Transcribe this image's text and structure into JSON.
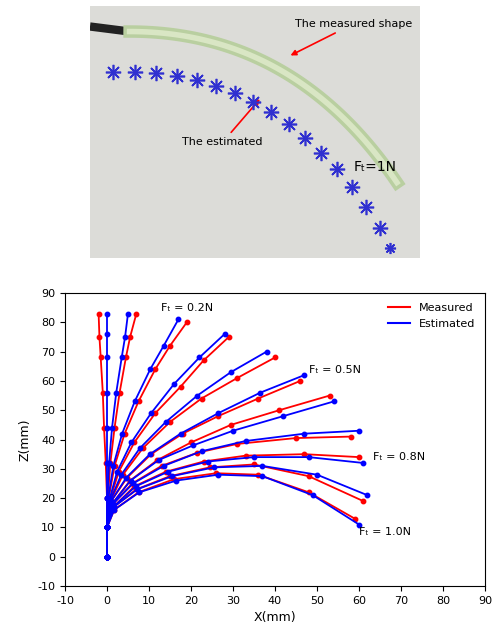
{
  "photo": {
    "measured_label": "The measured shape",
    "estimated_label": "The estimated",
    "force_label": "Fₜ=1N"
  },
  "chart_data": {
    "type": "line",
    "xlabel": "X(mm)",
    "ylabel": "Z(mm)",
    "xlim": [
      -10,
      90
    ],
    "ylim": [
      -10,
      90
    ],
    "xticks": [
      -10,
      0,
      10,
      20,
      30,
      40,
      50,
      60,
      70,
      80,
      90
    ],
    "yticks": [
      -10,
      0,
      10,
      20,
      30,
      40,
      50,
      60,
      70,
      80,
      90
    ],
    "grid": false,
    "legend": "upper right",
    "series": [
      {
        "name": "Measured",
        "color": "#ff0000",
        "marker": "o",
        "curves": [
          {
            "x": [
              0,
              0,
              0,
              -0.3,
              -0.7,
              -1,
              -1.5,
              -1.8,
              -2
            ],
            "y": [
              0,
              10,
              20,
              32,
              44,
              56,
              68,
              75,
              83
            ]
          },
          {
            "x": [
              0,
              0,
              0.2,
              0.8,
              1.8,
              3,
              4.5,
              5.5,
              7
            ],
            "y": [
              0,
              10,
              20,
              32,
              44,
              56,
              68,
              75,
              83
            ]
          },
          {
            "x": [
              0,
              0,
              0.4,
              1.8,
              4.2,
              7.5,
              11.5,
              15,
              19
            ],
            "y": [
              0,
              10,
              20,
              31,
              42,
              53,
              64,
              72,
              80
            ],
            "label": "Fₜ = 0.2N"
          },
          {
            "x": [
              0,
              0,
              0.6,
              2.8,
              6.5,
              11.5,
              17.5,
              23,
              29
            ],
            "y": [
              0,
              10,
              19,
              29,
              39,
              49,
              58,
              67,
              75
            ]
          },
          {
            "x": [
              0,
              0,
              0.8,
              3.8,
              8.5,
              15,
              22.5,
              31,
              40
            ],
            "y": [
              0,
              10,
              19,
              28,
              37,
              46,
              54,
              61,
              68
            ]
          },
          {
            "x": [
              0,
              0,
              1,
              4.8,
              10.5,
              18,
              26.5,
              36,
              46
            ],
            "y": [
              0,
              10,
              19,
              27,
              35,
              42,
              48,
              54,
              60
            ],
            "label": "Fₜ = 0.5N"
          },
          {
            "x": [
              0,
              0,
              1.2,
              5.5,
              12,
              20,
              29.5,
              41,
              53
            ],
            "y": [
              0,
              10,
              18,
              26,
              33,
              39,
              45,
              50,
              55
            ]
          },
          {
            "x": [
              0,
              0,
              1.4,
              6,
              13,
              21.5,
              31,
              45,
              58
            ],
            "y": [
              0,
              10,
              18,
              25,
              31,
              35.5,
              38.5,
              40.5,
              41
            ]
          },
          {
            "x": [
              0,
              0,
              1.5,
              6.5,
              14,
              23,
              33,
              47,
              60
            ],
            "y": [
              0,
              10,
              17,
              24,
              29,
              32.5,
              34.5,
              35,
              34
            ],
            "label": "Fₜ = 0.8N"
          },
          {
            "x": [
              0,
              0,
              1.6,
              7,
              15,
              24.5,
              35,
              48,
              61
            ],
            "y": [
              0,
              10,
              17,
              23,
              27.5,
              30.5,
              31.5,
              27.5,
              19
            ]
          },
          {
            "x": [
              0,
              0,
              1.7,
              7.5,
              16,
              26,
              36,
              48,
              59
            ],
            "y": [
              0,
              10,
              16,
              22,
              26.5,
              28.5,
              28,
              22,
              13
            ],
            "label": "Fₜ = 1.0N"
          }
        ]
      },
      {
        "name": "Estimated",
        "color": "#0000ff",
        "marker": "o",
        "curves": [
          {
            "x": [
              0,
              0,
              0,
              0,
              0,
              0,
              0,
              0,
              0
            ],
            "y": [
              0,
              10,
              20,
              32,
              44,
              56,
              68,
              76,
              83
            ]
          },
          {
            "x": [
              0,
              0,
              0.1,
              0.5,
              1.2,
              2.2,
              3.5,
              4.3,
              5
            ],
            "y": [
              0,
              10,
              20,
              32,
              44,
              56,
              68,
              75,
              83
            ]
          },
          {
            "x": [
              0,
              0,
              0.3,
              1.5,
              3.6,
              6.6,
              10.3,
              13.5,
              17
            ],
            "y": [
              0,
              10,
              20,
              31,
              42,
              53,
              64,
              72,
              81
            ]
          },
          {
            "x": [
              0,
              0,
              0.5,
              2.4,
              5.8,
              10.5,
              16,
              22,
              28
            ],
            "y": [
              0,
              10,
              19,
              29,
              39,
              49,
              59,
              68,
              76
            ]
          },
          {
            "x": [
              0,
              0,
              0.7,
              3.4,
              7.8,
              14,
              21.5,
              29.5,
              38
            ],
            "y": [
              0,
              10,
              19,
              28,
              37,
              46,
              55,
              63,
              70
            ]
          },
          {
            "x": [
              0,
              0,
              1,
              4.6,
              10.2,
              17.5,
              26.5,
              36.5,
              47
            ],
            "y": [
              0,
              10,
              19,
              27,
              35,
              42,
              49,
              56,
              62
            ]
          },
          {
            "x": [
              0,
              0,
              1.2,
              5.6,
              12.3,
              20.5,
              30,
              42,
              54
            ],
            "y": [
              0,
              10,
              18,
              26,
              33,
              38,
              43,
              48,
              53
            ]
          },
          {
            "x": [
              0,
              0,
              1.4,
              6.2,
              13.5,
              22.5,
              33,
              47,
              60
            ],
            "y": [
              0,
              10,
              18,
              25,
              31,
              36,
              39.5,
              42,
              43
            ]
          },
          {
            "x": [
              0,
              0,
              1.5,
              6.8,
              14.5,
              24,
              35,
              48,
              61
            ],
            "y": [
              0,
              10,
              17,
              24,
              29,
              32.5,
              34,
              34,
              32
            ]
          },
          {
            "x": [
              0,
              0,
              1.6,
              7.2,
              15.5,
              25.5,
              37,
              50,
              62
            ],
            "y": [
              0,
              10,
              17,
              23,
              27.5,
              30.5,
              31,
              28,
              21
            ]
          },
          {
            "x": [
              0,
              0,
              1.7,
              7.7,
              16.5,
              26.5,
              37,
              49,
              60
            ],
            "y": [
              0,
              10,
              16,
              22,
              26,
              28,
              27.5,
              21,
              11
            ]
          }
        ]
      }
    ]
  }
}
